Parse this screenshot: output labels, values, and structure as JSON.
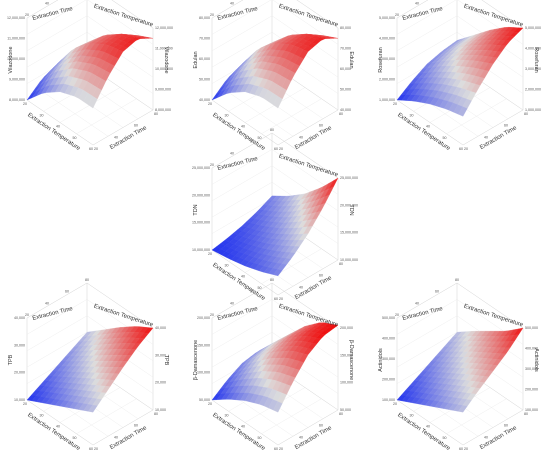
{
  "chart_data": [
    {
      "type": "surface",
      "ylabel": "Vilazodone",
      "xlabel": "Extraction Temperature",
      "tlabel": "Extraction Time",
      "z_ticks": [
        "12,000,000",
        "11,000,000",
        "10,000,000",
        "9,000,000",
        "8,000,000"
      ],
      "x_ticks": [
        "20",
        "30",
        "40",
        "50",
        "60"
      ],
      "t_ticks": [
        "20",
        "40",
        "60",
        "80"
      ],
      "zlim": [
        8000000,
        12000000
      ],
      "z_values": [
        [
          8000000,
          8600000,
          8900000,
          8700000,
          8300000
        ],
        [
          8900000,
          9700000,
          10200000,
          10100000,
          9600000
        ],
        [
          9500000,
          10400000,
          11000000,
          11000000,
          10500000
        ],
        [
          9800000,
          10800000,
          11500000,
          11600000,
          11100000
        ],
        [
          9800000,
          10900000,
          11700000,
          11900000,
          11500000
        ]
      ],
      "colors": {
        "low": "#2233ee",
        "mid": "#dddddd",
        "high": "#ee1111"
      }
    },
    {
      "type": "surface",
      "ylabel": "Edulan",
      "xlabel": "Extraction Temperature",
      "tlabel": "Extraction Time",
      "z_ticks": [
        "80,000",
        "70,000",
        "60,000",
        "50,000",
        "40,000"
      ],
      "x_ticks": [
        "20",
        "30",
        "40",
        "50",
        "60"
      ],
      "t_ticks": [
        "20",
        "40",
        "60",
        "80"
      ],
      "zlim": [
        40000,
        80000
      ],
      "z_values": [
        [
          40000,
          46000,
          49000,
          47000,
          43000
        ],
        [
          49000,
          57000,
          62000,
          61000,
          56000
        ],
        [
          55000,
          64000,
          70000,
          70000,
          65000
        ],
        [
          58000,
          68000,
          75000,
          76000,
          71000
        ],
        [
          58000,
          69000,
          77000,
          79000,
          75000
        ]
      ],
      "colors": {
        "low": "#2233ee",
        "mid": "#dddddd",
        "high": "#ee1111"
      }
    },
    {
      "type": "surface",
      "ylabel": "Rosefuran",
      "xlabel": "Extraction Temperature",
      "tlabel": "Extraction Time",
      "z_ticks": [
        "5,000,000",
        "4,000,000",
        "3,000,000",
        "2,000,000",
        "1,000,000"
      ],
      "x_ticks": [
        "20",
        "30",
        "40",
        "50",
        "60"
      ],
      "t_ticks": [
        "20",
        "40",
        "60",
        "80"
      ],
      "zlim": [
        1000000,
        5000000
      ],
      "z_values": [
        [
          1000000,
          1500000,
          1900000,
          2100000,
          2200000
        ],
        [
          1500000,
          2100000,
          2600000,
          2900000,
          3000000
        ],
        [
          1900000,
          2600000,
          3200000,
          3600000,
          3800000
        ],
        [
          2200000,
          3000000,
          3700000,
          4200000,
          4500000
        ],
        [
          2400000,
          3300000,
          4100000,
          4700000,
          5000000
        ]
      ],
      "colors": {
        "low": "#2233ee",
        "mid": "#dddddd",
        "high": "#ee1111"
      }
    },
    {
      "type": "surface",
      "ylabel": "TDN",
      "xlabel": "Extraction Temperature",
      "tlabel": "Extraction Time",
      "z_ticks": [
        "25,000,000",
        "20,000,000",
        "15,000,000",
        "10,000,000"
      ],
      "x_ticks": [
        "20",
        "30",
        "40",
        "50",
        "60"
      ],
      "t_ticks": [
        "20",
        "40",
        "60",
        "80"
      ],
      "zlim": [
        10000000,
        25000000
      ],
      "z_values": [
        [
          10000000,
          10500000,
          11200000,
          12200000,
          13500000
        ],
        [
          10500000,
          11300000,
          12400000,
          13800000,
          15500000
        ],
        [
          11200000,
          12400000,
          13900000,
          15800000,
          18000000
        ],
        [
          12200000,
          13800000,
          15800000,
          18300000,
          21200000
        ],
        [
          13500000,
          15500000,
          18000000,
          21200000,
          25000000
        ]
      ],
      "colors": {
        "low": "#2233ee",
        "mid": "#dddddd",
        "high": "#ee1111"
      }
    },
    {
      "type": "surface",
      "ylabel": "TPB",
      "xlabel": "Extraction Temperature",
      "tlabel": "Extraction Time",
      "z_ticks": [
        "40,000",
        "30,000",
        "20,000",
        "10,000"
      ],
      "x_ticks": [
        "20",
        "30",
        "40",
        "50",
        "60"
      ],
      "t_ticks": [
        "20",
        "40",
        "60",
        "80"
      ],
      "zlim": [
        10000,
        40000
      ],
      "z_values": [
        [
          10000,
          13000,
          16000,
          19000,
          22000
        ],
        [
          13000,
          16500,
          20000,
          23500,
          27000
        ],
        [
          16000,
          20000,
          24000,
          28000,
          32000
        ],
        [
          19000,
          23500,
          28000,
          32500,
          36500
        ],
        [
          22000,
          27000,
          32000,
          36500,
          40000
        ]
      ],
      "colors": {
        "low": "#2233ee",
        "mid": "#dddddd",
        "high": "#ee1111"
      }
    },
    {
      "type": "surface",
      "ylabel": "β-Damascenone",
      "xlabel": "Extraction Temperature",
      "tlabel": "Extraction Time",
      "z_ticks": [
        "200,000",
        "150,000",
        "100,000",
        "50,000"
      ],
      "x_ticks": [
        "20",
        "30",
        "40",
        "50",
        "60"
      ],
      "t_ticks": [
        "20",
        "40",
        "60",
        "80"
      ],
      "zlim": [
        50000,
        200000
      ],
      "z_values": [
        [
          50000,
          70000,
          85000,
          90000,
          88000
        ],
        [
          72000,
          98000,
          118000,
          127000,
          126000
        ],
        [
          90000,
          122000,
          147000,
          160000,
          162000
        ],
        [
          103000,
          140000,
          170000,
          186000,
          190000
        ],
        [
          110000,
          150000,
          183000,
          201000,
          205000
        ]
      ],
      "colors": {
        "low": "#2233ee",
        "mid": "#dddddd",
        "high": "#ee1111"
      }
    },
    {
      "type": "surface",
      "ylabel": "Actinidols",
      "xlabel": "Extraction Temperature",
      "tlabel": "Extraction Time",
      "z_ticks": [
        "500,000",
        "400,000",
        "300,000",
        "200,000",
        "100,000"
      ],
      "x_ticks": [
        "20",
        "30",
        "40",
        "50",
        "60"
      ],
      "t_ticks": [
        "20",
        "40",
        "60",
        "80"
      ],
      "zlim": [
        100000,
        500000
      ],
      "z_values": [
        [
          100000,
          140000,
          180000,
          220000,
          260000
        ],
        [
          140000,
          185000,
          230000,
          275000,
          320000
        ],
        [
          180000,
          230000,
          280000,
          330000,
          375000
        ],
        [
          220000,
          275000,
          330000,
          380000,
          430000
        ],
        [
          260000,
          320000,
          375000,
          430000,
          500000
        ]
      ],
      "colors": {
        "low": "#2233ee",
        "mid": "#dddddd",
        "high": "#ee1111"
      }
    }
  ]
}
